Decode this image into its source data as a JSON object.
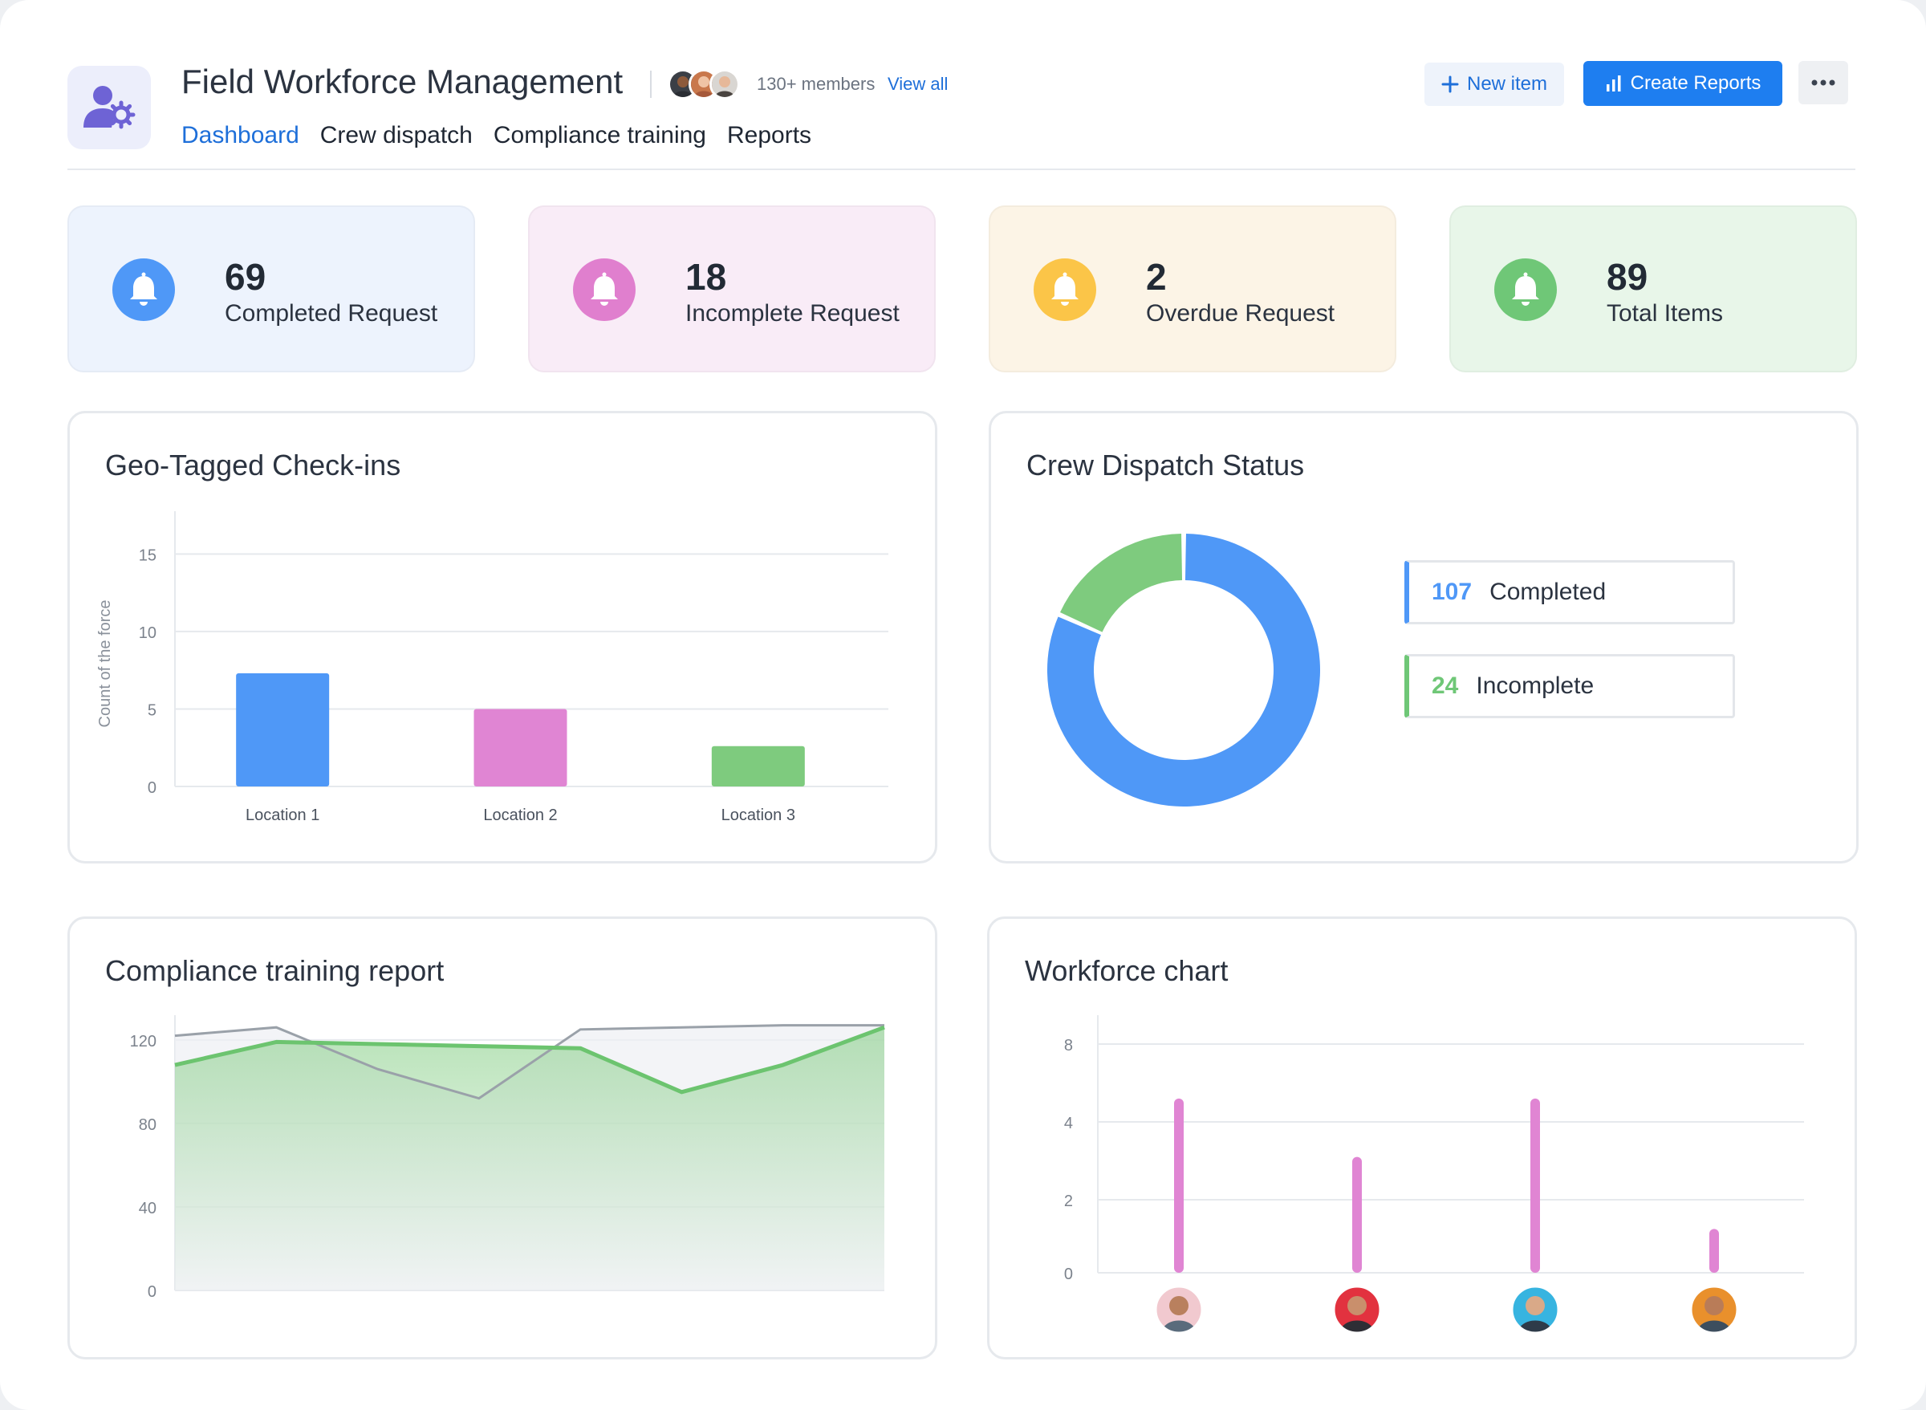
{
  "header": {
    "title": "Field Workforce Management",
    "members_label": "130+ members",
    "view_all": "View all",
    "new_item_label": "New item",
    "create_reports_label": "Create Reports",
    "more_icon": "more-horizontal-icon"
  },
  "nav": {
    "tabs": [
      {
        "label": "Dashboard",
        "active": true
      },
      {
        "label": "Crew dispatch",
        "active": false
      },
      {
        "label": "Compliance training",
        "active": false
      },
      {
        "label": "Reports",
        "active": false
      }
    ]
  },
  "stats": [
    {
      "value": "69",
      "label": "Completed Request",
      "color": "#4f98f7",
      "bg": "#edf3fd",
      "icon": "bell-icon"
    },
    {
      "value": "18",
      "label": "Incomplete Request",
      "color": "#e07fce",
      "bg": "#f9ecf7",
      "icon": "bell-icon"
    },
    {
      "value": "2",
      "label": "Overdue Request",
      "color": "#fbc548",
      "bg": "#fcf4e6",
      "icon": "bell-icon"
    },
    {
      "value": "89",
      "label": "Total Items",
      "color": "#6fc777",
      "bg": "#e8f6e9",
      "icon": "bell-icon"
    }
  ],
  "geo_panel": {
    "title": "Geo-Tagged Check-ins"
  },
  "dispatch_panel": {
    "title": "Crew Dispatch Status",
    "legend": [
      {
        "value": "107",
        "label": "Completed",
        "color": "#4f98f7"
      },
      {
        "value": "24",
        "label": "Incomplete",
        "color": "#6fc777"
      }
    ]
  },
  "compliance_panel": {
    "title": "Compliance training report"
  },
  "workforce_panel": {
    "title": "Workforce chart"
  },
  "chart_data": [
    {
      "type": "bar",
      "title": "Geo-Tagged Check-ins",
      "ylabel": "Count of the force",
      "categories": [
        "Location 1",
        "Location 2",
        "Location 3"
      ],
      "values": [
        7.3,
        5.0,
        2.6
      ],
      "colors": [
        "#4f98f7",
        "#e085d3",
        "#7ecb7e"
      ],
      "yticks": [
        0,
        5,
        10,
        15
      ],
      "ylim": [
        0,
        16
      ],
      "grid": true
    },
    {
      "type": "pie",
      "title": "Crew Dispatch Status",
      "donut": true,
      "categories": [
        "Completed",
        "Incomplete"
      ],
      "values": [
        107,
        24
      ],
      "colors": [
        "#4f98f7",
        "#7ecb7e"
      ]
    },
    {
      "type": "area",
      "title": "Compliance training report",
      "x": [
        0,
        1,
        2,
        3,
        4,
        5,
        6,
        7
      ],
      "yticks": [
        0,
        40,
        80,
        120
      ],
      "ylim": [
        0,
        128
      ],
      "series": [
        {
          "values": [
            108,
            119,
            118,
            117,
            116,
            95,
            108,
            126
          ],
          "color": "#6cc46f",
          "filled": true
        },
        {
          "values": [
            122,
            126,
            106,
            92,
            125,
            126,
            127,
            127
          ],
          "color": "#9aa1a9",
          "filled": true
        }
      ],
      "grid": true
    },
    {
      "type": "bar",
      "title": "Workforce chart",
      "categories": [
        "person-1",
        "person-2",
        "person-3",
        "person-4"
      ],
      "values": [
        5.2,
        3.1,
        5.2,
        1.2
      ],
      "colors": [
        "#e085d3",
        "#e085d3",
        "#e085d3",
        "#e085d3"
      ],
      "yticks": [
        0,
        2,
        4,
        8
      ],
      "grid": true
    }
  ]
}
